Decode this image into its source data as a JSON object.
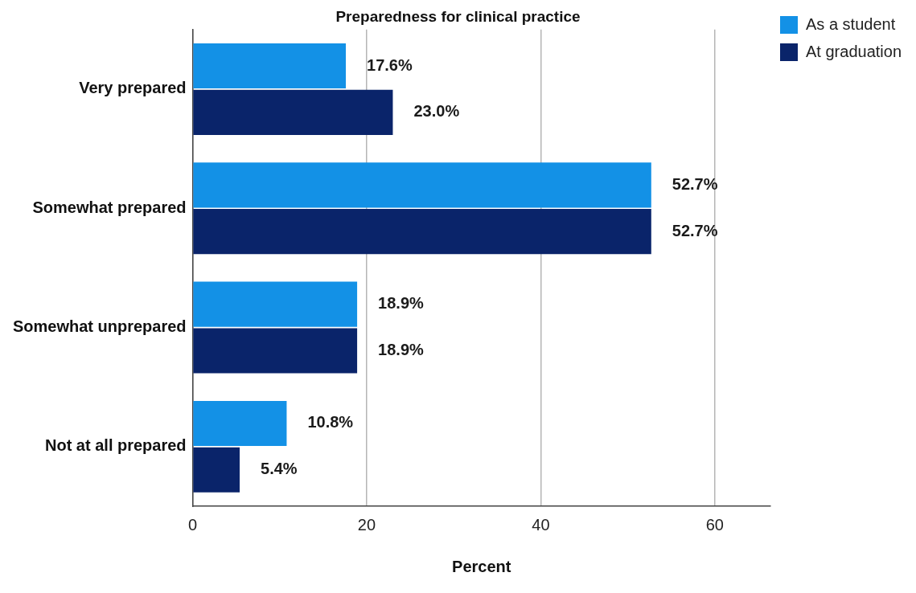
{
  "chart_data": {
    "type": "bar",
    "title": "Preparedness for clinical practice",
    "xlabel": "Percent",
    "orientation": "horizontal",
    "categories": [
      "Very prepared",
      "Somewhat prepared",
      "Somewhat unprepared",
      "Not at all prepared"
    ],
    "series": [
      {
        "name": "As a student",
        "color": "#1391e6",
        "values": [
          17.6,
          52.7,
          18.9,
          10.8
        ],
        "value_labels": [
          "17.6%",
          "52.7%",
          "18.9%",
          "10.8%"
        ]
      },
      {
        "name": "At graduation",
        "color": "#0a246a",
        "values": [
          23.0,
          52.7,
          18.9,
          5.4
        ],
        "value_labels": [
          "23.0%",
          "52.7%",
          "18.9%",
          "5.4%"
        ]
      }
    ],
    "xlim": [
      0,
      66.4
    ],
    "xticks": [
      0,
      20,
      40,
      60
    ],
    "grid": "x",
    "legend": "top right"
  }
}
